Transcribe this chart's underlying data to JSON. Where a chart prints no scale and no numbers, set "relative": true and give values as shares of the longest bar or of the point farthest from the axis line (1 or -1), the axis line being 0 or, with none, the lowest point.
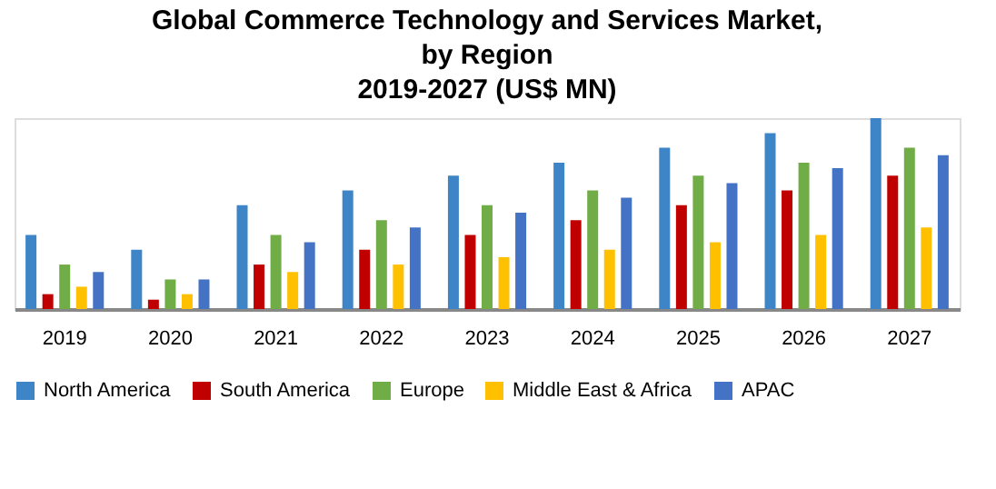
{
  "chart_data": {
    "type": "bar",
    "title": [
      "Global Commerce Technology and  Services Market,",
      "by Region",
      "2019-2027 (US$ MN)"
    ],
    "relative": true,
    "legend": "bottom",
    "grid": false,
    "categories": [
      "2019",
      "2020",
      "2021",
      "2022",
      "2023",
      "2024",
      "2025",
      "2026",
      "2027"
    ],
    "series": [
      {
        "name": "North America",
        "color": "#3d85c6",
        "values": [
          0.388,
          0.311,
          0.544,
          0.621,
          0.699,
          0.767,
          0.845,
          0.922,
          1
        ]
      },
      {
        "name": "South America",
        "color": "#c00000",
        "values": [
          0.078,
          0.049,
          0.233,
          0.311,
          0.388,
          0.466,
          0.544,
          0.621,
          0.699
        ]
      },
      {
        "name": "Europe",
        "color": "#70ad47",
        "values": [
          0.233,
          0.155,
          0.388,
          0.466,
          0.544,
          0.621,
          0.699,
          0.767,
          0.845
        ]
      },
      {
        "name": "Middle East & Africa",
        "color": "#ffc000",
        "values": [
          0.117,
          0.078,
          0.194,
          0.233,
          0.272,
          0.311,
          0.35,
          0.388,
          0.427
        ]
      },
      {
        "name": "APAC",
        "color": "#4472c4",
        "values": [
          0.194,
          0.155,
          0.35,
          0.427,
          0.505,
          0.583,
          0.66,
          0.738,
          0.806
        ]
      }
    ]
  }
}
